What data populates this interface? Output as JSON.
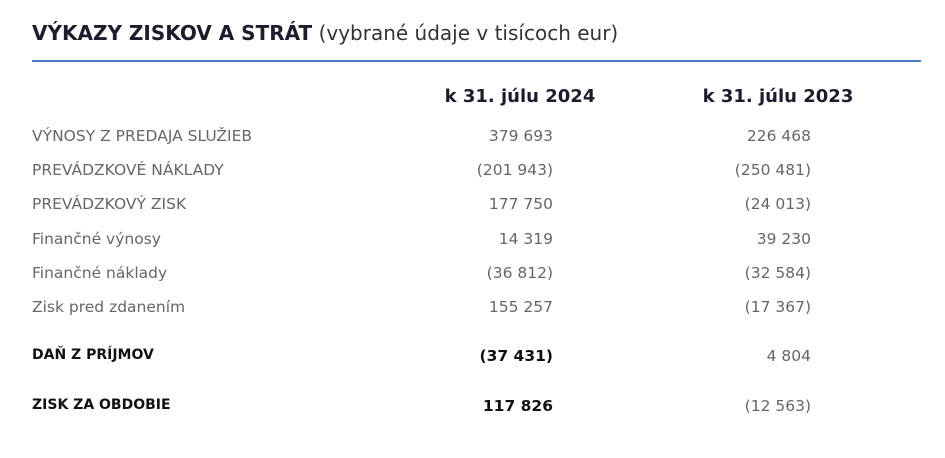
{
  "header": {
    "title": "VÝKAZY ZISKOV A STRÁT",
    "subtitle": "(vybrané údaje v tisícoch eur)"
  },
  "table": {
    "columns": [
      "k 31. júlu 2024",
      "k 31. júlu 2023"
    ],
    "rows": [
      [
        "VÝNOSY Z PREDAJA SLUŽIEB",
        "379 693",
        "226 468"
      ],
      [
        "PREVÁDZKOVÉ NÁKLADY",
        "(201 943)",
        "(250 481)"
      ],
      [
        "PREVÁDZKOVÝ ZISK",
        "177 750",
        "(24 013)"
      ],
      [
        "Finančné výnosy",
        "14 319",
        "39 230"
      ],
      [
        "Finančné náklady",
        "(36 812)",
        "(32 584)"
      ],
      [
        "Zisk pred zdanením",
        "155 257",
        "(17 367)"
      ],
      [
        "DAŇ Z PRÍJMOV",
        "(37 431)",
        "4 804"
      ],
      [
        "ZISK ZA OBDOBIE",
        "117 826",
        "(12 563)"
      ]
    ]
  }
}
